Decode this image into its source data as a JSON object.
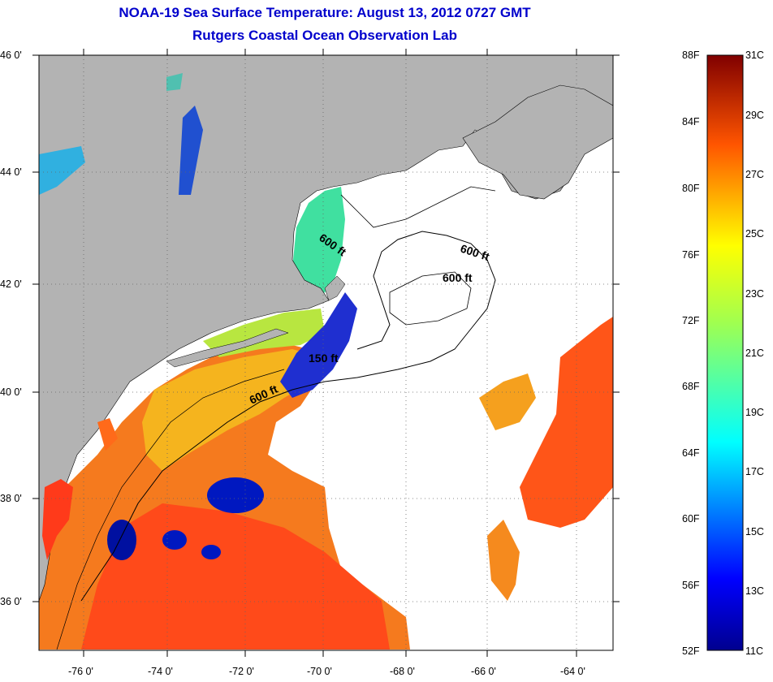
{
  "header": {
    "title": "NOAA-19 Sea Surface Temperature:  August 13, 2012 0727 GMT",
    "subtitle": "Rutgers Coastal Ocean Observation Lab"
  },
  "map": {
    "lat_ticks": [
      "46 0'",
      "44 0'",
      "42 0'",
      "40 0'",
      "38 0'",
      "36 0'"
    ],
    "lon_ticks": [
      "-76 0'",
      "-74 0'",
      "-72 0'",
      "-70 0'",
      "-68 0'",
      "-66 0'",
      "-64 0'"
    ],
    "contour_labels": [
      "600 ft",
      "600 ft",
      "600 ft",
      "150 ft",
      "600 ft"
    ],
    "colors": {
      "land": "#b3b3b3",
      "cloud": "#ffffff",
      "warm": "#ff4400",
      "cool": "#0000aa"
    }
  },
  "colorbar": {
    "fahrenheit": [
      "88F",
      "84F",
      "80F",
      "76F",
      "72F",
      "68F",
      "64F",
      "60F",
      "56F",
      "52F"
    ],
    "celsius": [
      "31C",
      "29C",
      "27C",
      "25C",
      "23C",
      "21C",
      "19C",
      "17C",
      "15C",
      "13C",
      "11C"
    ],
    "range_c": [
      11,
      31
    ],
    "range_f": [
      52,
      88
    ]
  }
}
